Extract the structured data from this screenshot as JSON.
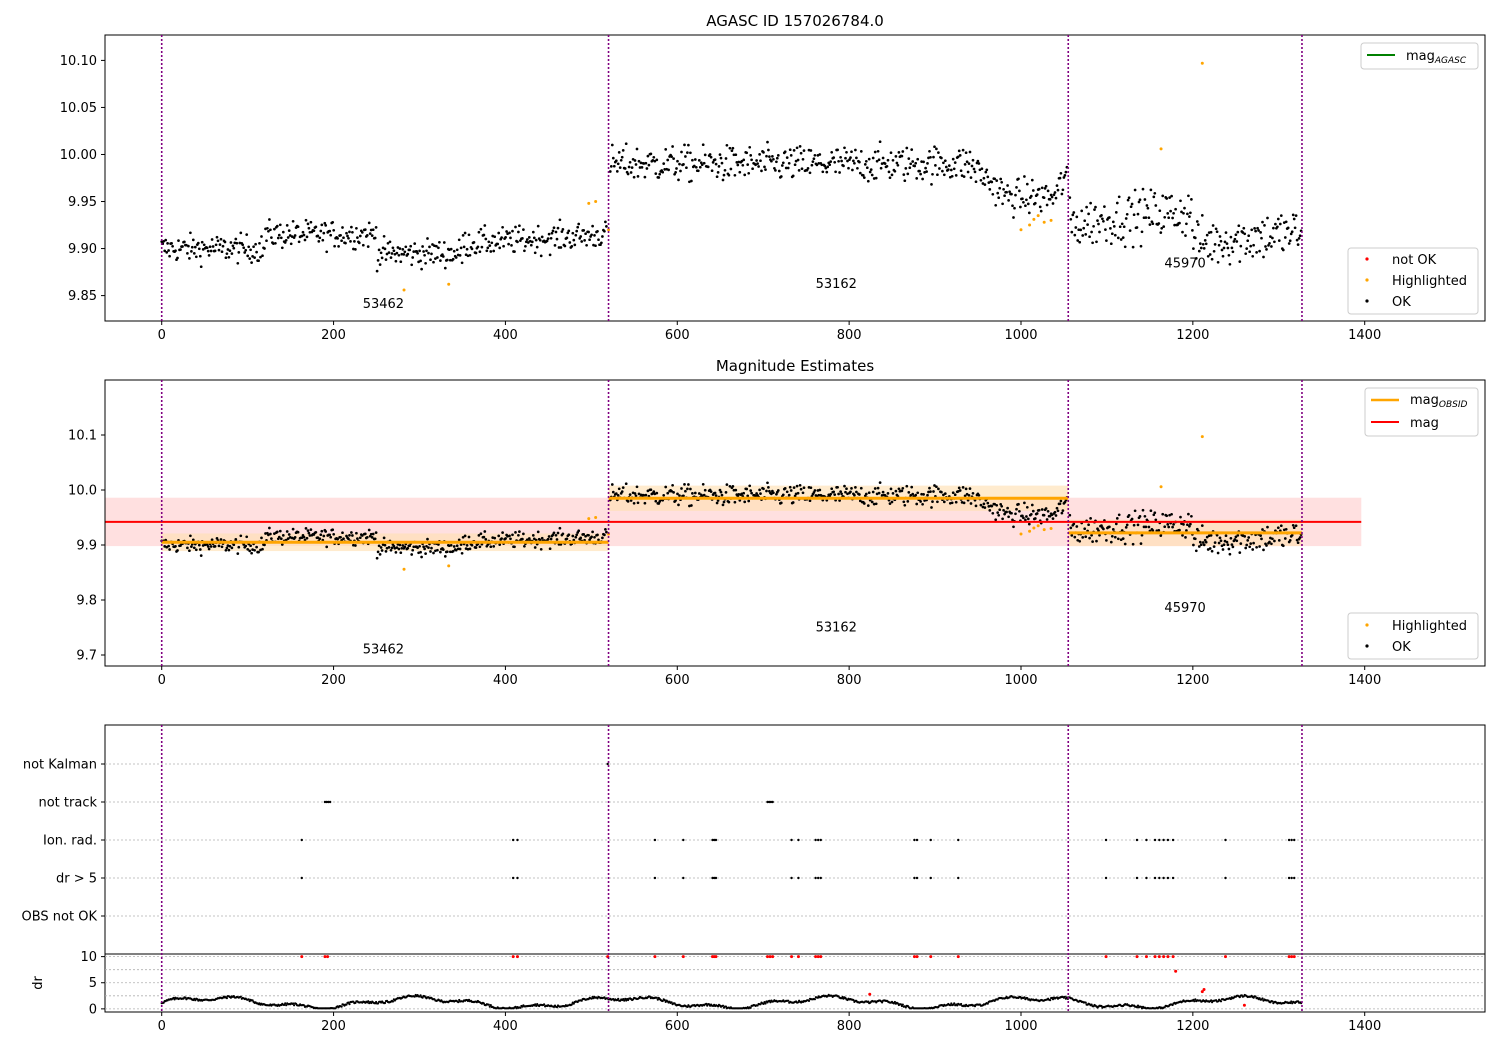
{
  "chart_data": [
    {
      "id": "p1",
      "type": "scatter",
      "title": "AGASC ID 157026784.0",
      "xlim": [
        -66,
        1540
      ],
      "ylim": [
        9.823,
        10.127
      ],
      "xticks": [
        0,
        200,
        400,
        600,
        800,
        1000,
        1200,
        1400
      ],
      "yticks": [
        9.85,
        9.9,
        9.95,
        10.0,
        10.05,
        10.1
      ],
      "ytick_decimals": 2,
      "grid": false,
      "legend_placement": "top-right and lower-right",
      "legend_top": [
        "mag",
        "AGASC"
      ],
      "legend_bottom": [
        "not OK",
        "Highlighted",
        "OK"
      ],
      "obsids": [
        {
          "label": "53462",
          "x": 258,
          "y": 9.837
        },
        {
          "label": "53162",
          "x": 785,
          "y": 9.858
        },
        {
          "label": "45970",
          "x": 1191,
          "y": 9.88
        }
      ],
      "highlighted": [
        [
          282,
          9.856
        ],
        [
          334,
          9.862
        ],
        [
          497,
          9.948
        ],
        [
          505,
          9.95
        ],
        [
          520,
          9.92
        ],
        [
          1000,
          9.92
        ],
        [
          1010,
          9.925
        ],
        [
          1015,
          9.931
        ],
        [
          1020,
          9.935
        ],
        [
          1027,
          9.928
        ],
        [
          1035,
          9.93
        ],
        [
          1163,
          10.006
        ],
        [
          1211,
          10.097
        ]
      ]
    },
    {
      "id": "p2",
      "type": "scatter",
      "title": "Magnitude Estimates",
      "xlim": [
        -66,
        1540
      ],
      "ylim": [
        9.68,
        10.2
      ],
      "xticks": [
        0,
        200,
        400,
        600,
        800,
        1000,
        1200,
        1400
      ],
      "yticks": [
        9.7,
        9.8,
        9.9,
        10.0,
        10.1
      ],
      "ytick_decimals": 1,
      "grid": false,
      "legend_placement": "top-right and lower-right",
      "legend_top": [
        "mag",
        "OBSID",
        "mag"
      ],
      "legend_bottom": [
        "Highlighted",
        "OK"
      ],
      "mag": 9.942,
      "mag_band": [
        9.898,
        9.986
      ],
      "mag_xrange": [
        -66,
        1396
      ],
      "segments": [
        {
          "x0": 0,
          "x1": 520,
          "mag": 9.905,
          "band": [
            9.889,
            9.921
          ]
        },
        {
          "x0": 520,
          "x1": 1055,
          "mag": 9.985,
          "band": [
            9.962,
            10.008
          ]
        },
        {
          "x0": 1055,
          "x1": 1327,
          "mag": 9.922,
          "band": [
            9.898,
            9.946
          ]
        }
      ],
      "obsids": [
        {
          "label": "53462",
          "x": 258,
          "y": 9.703
        },
        {
          "label": "53162",
          "x": 785,
          "y": 9.743
        },
        {
          "label": "45970",
          "x": 1191,
          "y": 9.778
        }
      ],
      "highlighted": [
        [
          282,
          9.856
        ],
        [
          334,
          9.862
        ],
        [
          497,
          9.948
        ],
        [
          505,
          9.95
        ],
        [
          520,
          9.92
        ],
        [
          1000,
          9.92
        ],
        [
          1010,
          9.925
        ],
        [
          1015,
          9.931
        ],
        [
          1020,
          9.935
        ],
        [
          1027,
          9.928
        ],
        [
          1035,
          9.93
        ],
        [
          1163,
          10.006
        ],
        [
          1211,
          10.097
        ]
      ]
    },
    {
      "id": "p3",
      "type": "scatter",
      "xlim": [
        -66,
        1540
      ],
      "categories": [
        "not Kalman",
        "not track",
        "Ion. rad.",
        "dr > 5",
        "OBS not OK"
      ],
      "events": {
        "not Kalman": [
          519
        ],
        "not track": [
          190,
          192,
          194,
          196,
          705,
          707,
          709,
          711
        ],
        "Ion. rad.": [
          163,
          409,
          414,
          574,
          607,
          641,
          643,
          645,
          733,
          741,
          761,
          764,
          767,
          876,
          879,
          895,
          927,
          1099,
          1135,
          1146,
          1156,
          1161,
          1166,
          1171,
          1177,
          1238,
          1312,
          1315,
          1318
        ],
        "dr > 5": [
          163,
          409,
          414,
          574,
          607,
          641,
          643,
          645,
          733,
          741,
          761,
          764,
          767,
          876,
          879,
          895,
          927,
          1099,
          1135,
          1146,
          1156,
          1161,
          1166,
          1171,
          1177,
          1238,
          1312,
          1315,
          1318
        ],
        "OBS not OK": []
      }
    },
    {
      "id": "p4",
      "type": "scatter",
      "xlim": [
        -66,
        1540
      ],
      "ylim": [
        -0.6,
        10.5
      ],
      "ylabel": "dr",
      "xticks": [
        0,
        200,
        400,
        600,
        800,
        1000,
        1200,
        1400
      ],
      "yticks": [
        0,
        5,
        10
      ],
      "ytick_decimals": 0,
      "flagged_at_10": [
        163,
        190,
        193,
        409,
        414,
        519,
        574,
        607,
        641,
        643,
        645,
        705,
        708,
        711,
        733,
        741,
        761,
        764,
        767,
        876,
        879,
        895,
        927,
        1099,
        1135,
        1146,
        1156,
        1161,
        1166,
        1171,
        1177,
        1238,
        1312,
        1315,
        1318
      ],
      "red_points": [
        [
          824,
          2.8
        ],
        [
          1180,
          7.2
        ],
        [
          1211,
          3.3
        ],
        [
          1213,
          3.7
        ],
        [
          1260,
          0.7
        ]
      ]
    }
  ],
  "obsid_boundaries": [
    0,
    520,
    1055,
    1327
  ],
  "series_colors": {
    "ok": "#000000",
    "highlighted": "#ffa500",
    "not_ok": "#ff0000",
    "mag": "#ff0000",
    "obsid": "#ffa500",
    "agasc": "#008000",
    "boundary": "#800080"
  }
}
